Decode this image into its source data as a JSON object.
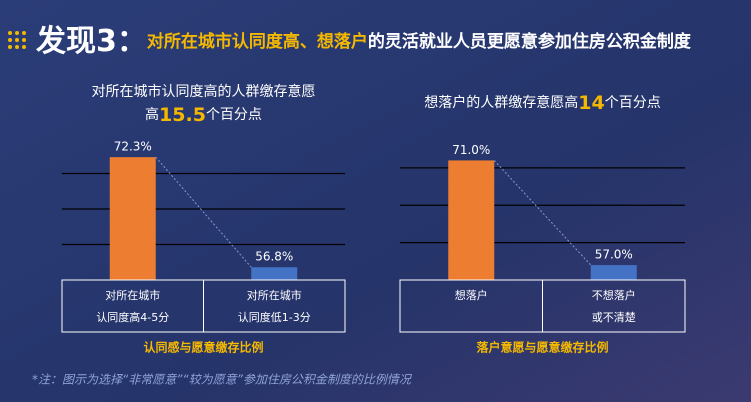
{
  "header": {
    "prefix": "发现3：",
    "highlight": "对所在城市认同度高、想落户",
    "rest": "的灵活就业人员更愿意参加住房公积金制度"
  },
  "chart_data": [
    {
      "type": "bar",
      "subtitle": {
        "line1": "对所在城市认同度高的人群缴存意愿",
        "prefix": "高",
        "number": 15.5,
        "suffix": "个百分点"
      },
      "categories": [
        [
          "对所在城市",
          "认同度高4-5分"
        ],
        [
          "对所在城市",
          "认同度低1-3分"
        ]
      ],
      "series": [
        {
          "colors": [
            "#ed7d31",
            "#4472c4"
          ],
          "values": [
            72.3,
            56.8
          ],
          "value_labels": [
            "72.3%",
            "56.8%"
          ]
        }
      ],
      "ylim": [
        55,
        75
      ],
      "yticks": [
        60,
        65,
        70
      ],
      "grid": true,
      "xlabel": "认同感与愿意缴存比例"
    },
    {
      "type": "bar",
      "subtitle": {
        "line1": "想落户的人群缴存意愿高",
        "number": 14,
        "suffix": "个百分点"
      },
      "categories": [
        [
          "想落户"
        ],
        [
          "不想落户",
          "或不清楚"
        ]
      ],
      "series": [
        {
          "colors": [
            "#ed7d31",
            "#4472c4"
          ],
          "values": [
            71.0,
            57.0
          ],
          "value_labels": [
            "71.0%",
            "57.0%"
          ]
        }
      ],
      "ylim": [
        55,
        74
      ],
      "yticks": [
        60,
        65,
        70
      ],
      "grid": true,
      "xlabel": "落户意愿与愿意缴存比例"
    }
  ],
  "footnote": "*注：图示为选择“非常愿意”“较为愿意”参加住房公积金制度的比例情况"
}
